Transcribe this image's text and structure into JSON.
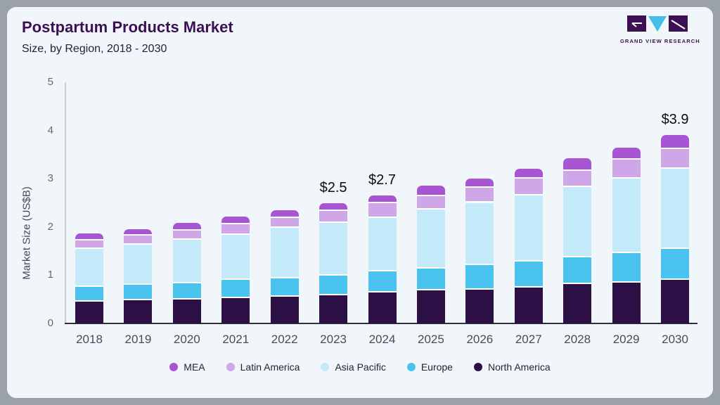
{
  "header": {
    "title": "Postpartum Products Market",
    "subtitle": "Size, by Region, 2018 - 2030"
  },
  "logo": {
    "brand": "GRAND VIEW RESEARCH",
    "purple": "#3c1053",
    "blue": "#46bde8"
  },
  "chart_data": {
    "type": "bar",
    "stacked": true,
    "title": "Postpartum Products Market Size, by Region, 2018 - 2030",
    "xlabel": "",
    "ylabel": "Market Size (US$B)",
    "ylim": [
      0,
      5
    ],
    "yticks": [
      0,
      1,
      2,
      3,
      4,
      5
    ],
    "grid": false,
    "legend_position": "bottom",
    "categories": [
      "2018",
      "2019",
      "2020",
      "2021",
      "2022",
      "2023",
      "2024",
      "2025",
      "2026",
      "2027",
      "2028",
      "2029",
      "2030"
    ],
    "series": [
      {
        "name": "North America",
        "color": "#2b0f45",
        "values": [
          0.45,
          0.48,
          0.49,
          0.53,
          0.56,
          0.59,
          0.64,
          0.68,
          0.7,
          0.75,
          0.81,
          0.85,
          0.91
        ]
      },
      {
        "name": "Europe",
        "color": "#4ac4ef",
        "values": [
          0.31,
          0.32,
          0.34,
          0.37,
          0.38,
          0.4,
          0.44,
          0.46,
          0.51,
          0.53,
          0.56,
          0.61,
          0.64
        ]
      },
      {
        "name": "Asia Pacific",
        "color": "#c4e9f9",
        "values": [
          0.79,
          0.83,
          0.9,
          0.94,
          1.04,
          1.09,
          1.11,
          1.22,
          1.29,
          1.37,
          1.46,
          1.55,
          1.65
        ]
      },
      {
        "name": "Latin America",
        "color": "#cfa6e8",
        "values": [
          0.17,
          0.19,
          0.2,
          0.22,
          0.21,
          0.25,
          0.3,
          0.28,
          0.31,
          0.35,
          0.34,
          0.39,
          0.42
        ]
      },
      {
        "name": "MEA",
        "color": "#a855d4",
        "values": [
          0.14,
          0.14,
          0.15,
          0.16,
          0.16,
          0.17,
          0.17,
          0.22,
          0.19,
          0.21,
          0.25,
          0.24,
          0.28
        ]
      }
    ],
    "totals": [
      1.86,
      1.96,
      2.08,
      2.22,
      2.35,
      2.5,
      2.66,
      2.86,
      3.0,
      3.21,
      3.42,
      3.64,
      3.9
    ],
    "annotations": [
      {
        "category": "2023",
        "label": "$2.5"
      },
      {
        "category": "2024",
        "label": "$2.7"
      },
      {
        "category": "2030",
        "label": "$3.9"
      }
    ]
  },
  "legend": {
    "items": [
      {
        "label": "MEA",
        "color": "#a855d4"
      },
      {
        "label": "Latin America",
        "color": "#cfa6e8"
      },
      {
        "label": "Asia Pacific",
        "color": "#c4e9f9"
      },
      {
        "label": "Europe",
        "color": "#4ac4ef"
      },
      {
        "label": "North America",
        "color": "#2b0f45"
      }
    ]
  }
}
